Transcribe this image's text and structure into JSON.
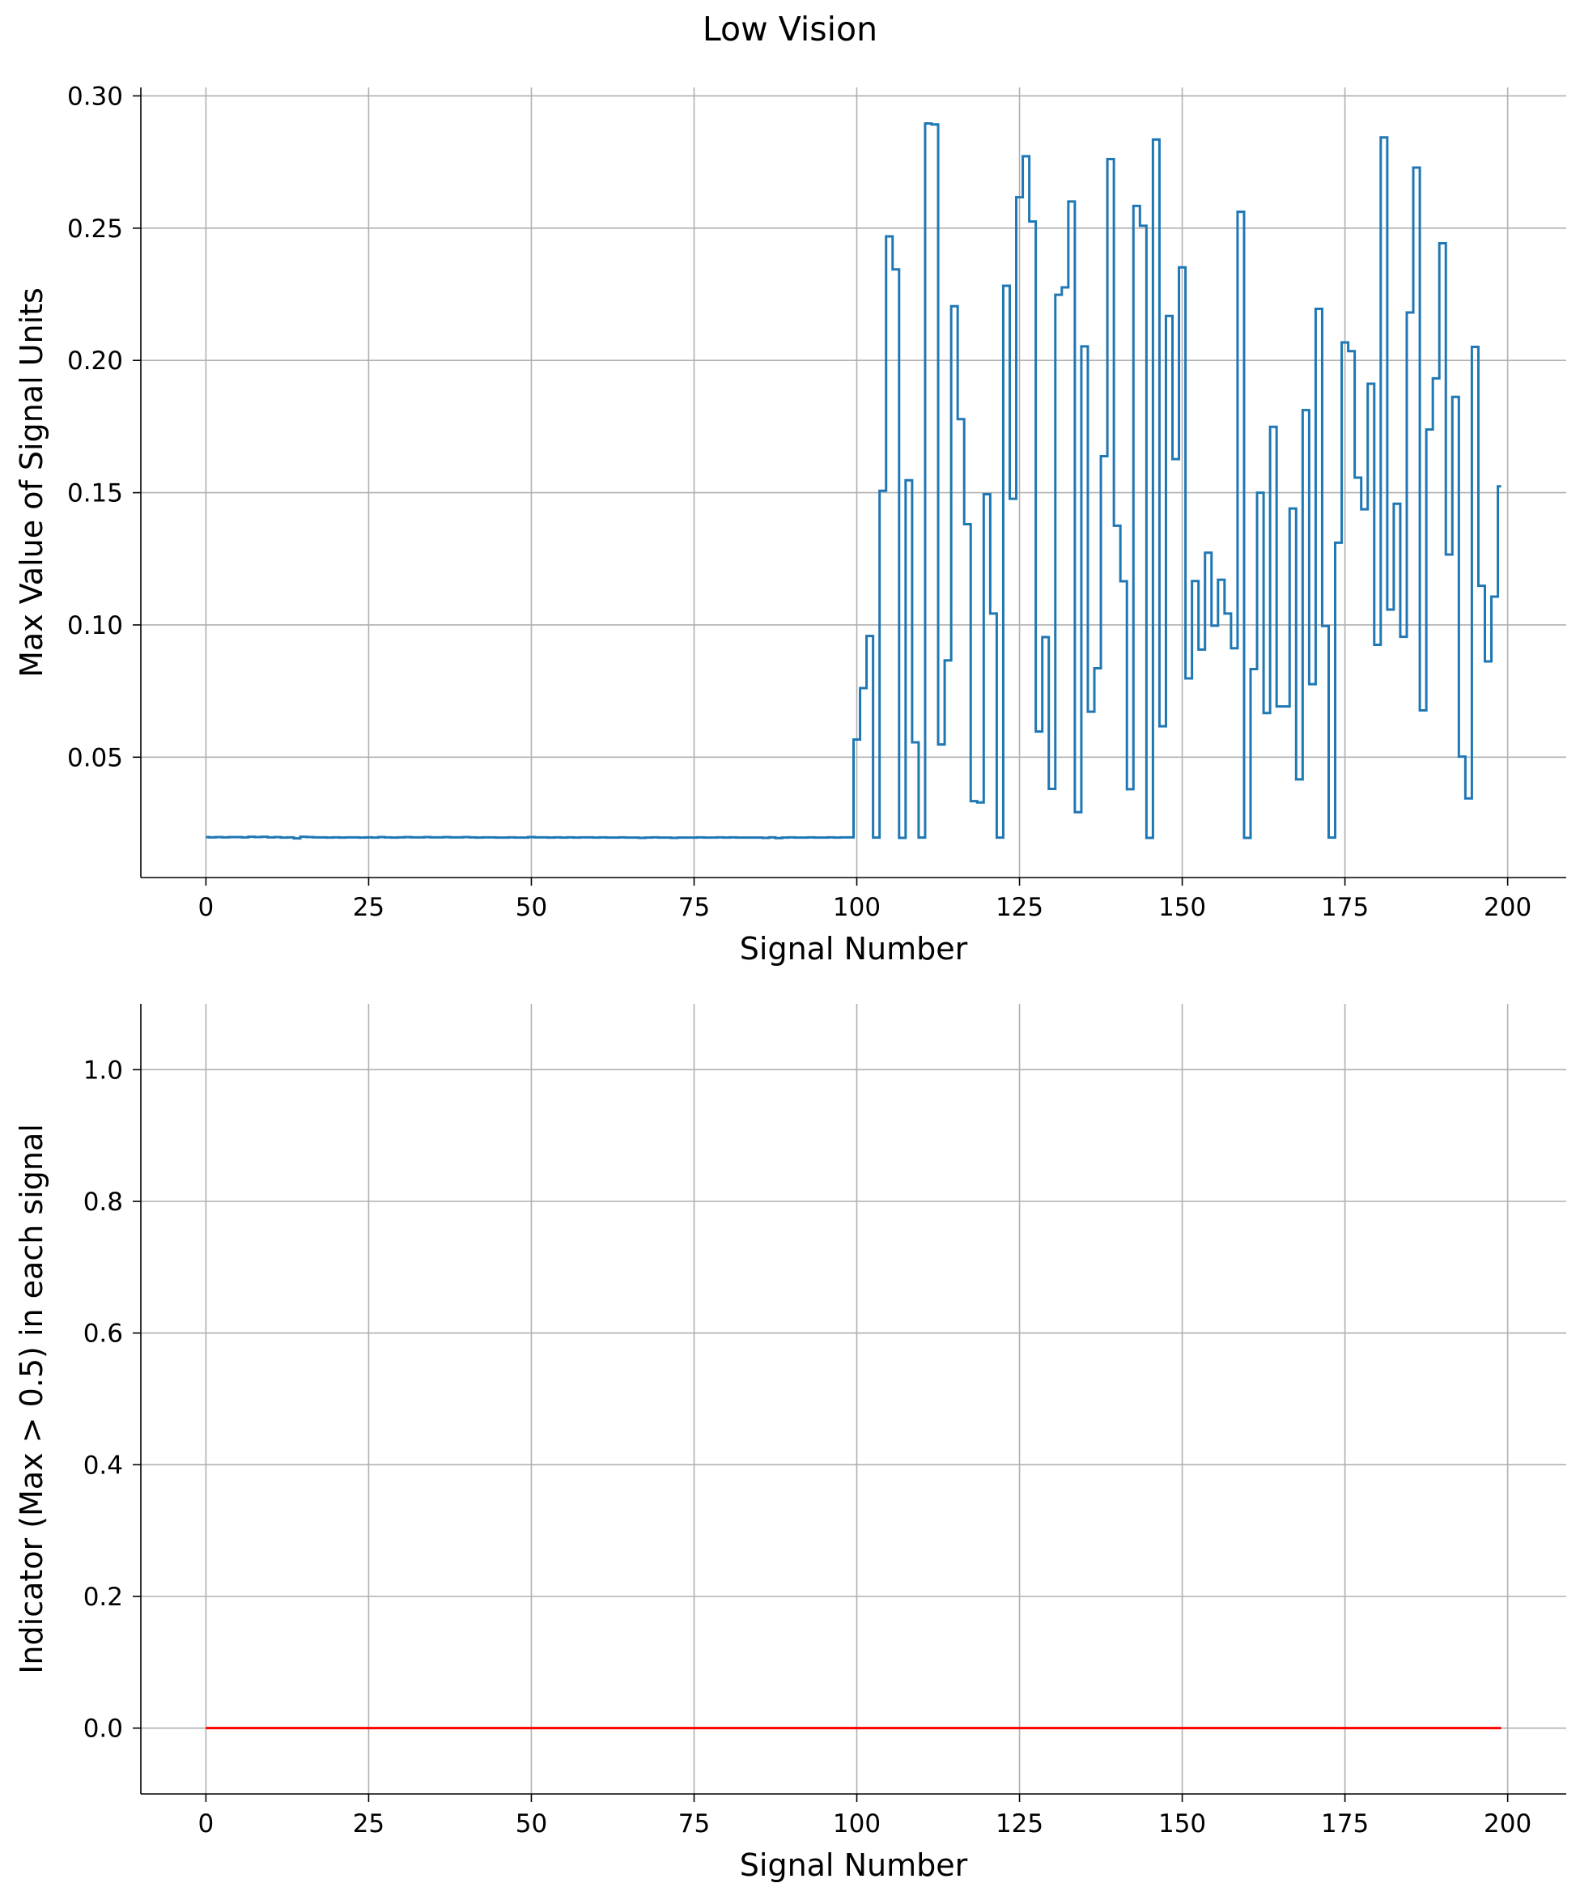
{
  "figure": {
    "title": "Low Vision"
  },
  "colors": {
    "series_top": "#1f77b4",
    "series_bottom": "#ff0000",
    "grid": "#b0b0b0",
    "axes": "#000000"
  },
  "chart_data": [
    {
      "type": "line",
      "drawstyle": "steps-mid",
      "xlabel": "Signal Number",
      "ylabel": "Max Value of Signal Units",
      "xlim": [
        -10,
        209
      ],
      "ylim": [
        0.0045,
        0.3032
      ],
      "xticks": [
        0,
        25,
        50,
        75,
        100,
        125,
        150,
        175,
        200
      ],
      "yticks": [
        0.05,
        0.1,
        0.15,
        0.2,
        0.25,
        0.3
      ],
      "ytick_labels": [
        "0.05",
        "0.10",
        "0.15",
        "0.20",
        "0.25",
        "0.30"
      ],
      "grid": true,
      "spines": "left-bottom",
      "series": [
        {
          "x_start": 0,
          "x_end": 199,
          "values": [
            0.0198,
            0.0197,
            0.0198,
            0.0197,
            0.0198,
            0.0198,
            0.0197,
            0.0199,
            0.0198,
            0.0199,
            0.0197,
            0.0198,
            0.0196,
            0.0197,
            0.0193,
            0.0199,
            0.0198,
            0.0197,
            0.0197,
            0.0196,
            0.0197,
            0.0196,
            0.0197,
            0.0197,
            0.0196,
            0.0197,
            0.0196,
            0.0198,
            0.0197,
            0.0196,
            0.0197,
            0.0198,
            0.0197,
            0.0197,
            0.0198,
            0.0197,
            0.0197,
            0.0198,
            0.0197,
            0.0197,
            0.0198,
            0.0197,
            0.0196,
            0.0197,
            0.0197,
            0.0196,
            0.0196,
            0.0197,
            0.0196,
            0.0196,
            0.0198,
            0.0197,
            0.0197,
            0.0196,
            0.0197,
            0.0196,
            0.0197,
            0.0196,
            0.0197,
            0.0197,
            0.0196,
            0.0197,
            0.0196,
            0.0196,
            0.0197,
            0.0196,
            0.0196,
            0.0195,
            0.0196,
            0.0197,
            0.0196,
            0.0196,
            0.0195,
            0.0196,
            0.0196,
            0.0196,
            0.0197,
            0.0196,
            0.0196,
            0.0197,
            0.0196,
            0.0197,
            0.0196,
            0.0196,
            0.0196,
            0.0196,
            0.0195,
            0.0197,
            0.0194,
            0.0196,
            0.0197,
            0.0196,
            0.0196,
            0.0197,
            0.0196,
            0.0196,
            0.0197,
            0.0196,
            0.0197,
            0.0197,
            0.0567,
            0.0761,
            0.0958,
            0.0196,
            0.1507,
            0.2469,
            0.2344,
            0.0195,
            0.1547,
            0.0556,
            0.0196,
            0.2896,
            0.2892,
            0.0548,
            0.0866,
            0.2205,
            0.1778,
            0.1381,
            0.0334,
            0.0329,
            0.1494,
            0.1043,
            0.0196,
            0.2282,
            0.1477,
            0.2617,
            0.2772,
            0.2525,
            0.0597,
            0.0954,
            0.038,
            0.2248,
            0.2276,
            0.2601,
            0.0292,
            0.2053,
            0.0672,
            0.0836,
            0.1638,
            0.2761,
            0.1375,
            0.1165,
            0.0379,
            0.2584,
            0.2509,
            0.0195,
            0.2835,
            0.0617,
            0.2168,
            0.1627,
            0.2352,
            0.0798,
            0.1166,
            0.0907,
            0.1273,
            0.0997,
            0.1171,
            0.1043,
            0.0912,
            0.2562,
            0.0195,
            0.0833,
            0.15,
            0.0667,
            0.1749,
            0.0692,
            0.0692,
            0.144,
            0.0416,
            0.1812,
            0.0776,
            0.2195,
            0.0996,
            0.0196,
            0.1311,
            0.2068,
            0.2035,
            0.1557,
            0.1437,
            0.1912,
            0.0925,
            0.2843,
            0.1058,
            0.1458,
            0.0955,
            0.2181,
            0.2729,
            0.0677,
            0.1739,
            0.1932,
            0.2443,
            0.1266,
            0.1862,
            0.0502,
            0.0344,
            0.2051,
            0.1148,
            0.0862,
            0.1107,
            0.1524
          ]
        }
      ]
    },
    {
      "type": "line",
      "xlabel": "Signal Number",
      "ylabel": "Indicator (Max > 0.5) in each signal",
      "xlim": [
        -10,
        209
      ],
      "ylim": [
        -0.1,
        1.1
      ],
      "xticks": [
        0,
        25,
        50,
        75,
        100,
        125,
        150,
        175,
        200
      ],
      "yticks": [
        0.0,
        0.2,
        0.4,
        0.6,
        0.8,
        1.0
      ],
      "ytick_labels": [
        "0.0",
        "0.2",
        "0.4",
        "0.6",
        "0.8",
        "1.0"
      ],
      "grid": true,
      "spines": "left-bottom",
      "series": [
        {
          "x_start": 0,
          "x_end": 199,
          "constant_value": 0
        }
      ]
    }
  ]
}
